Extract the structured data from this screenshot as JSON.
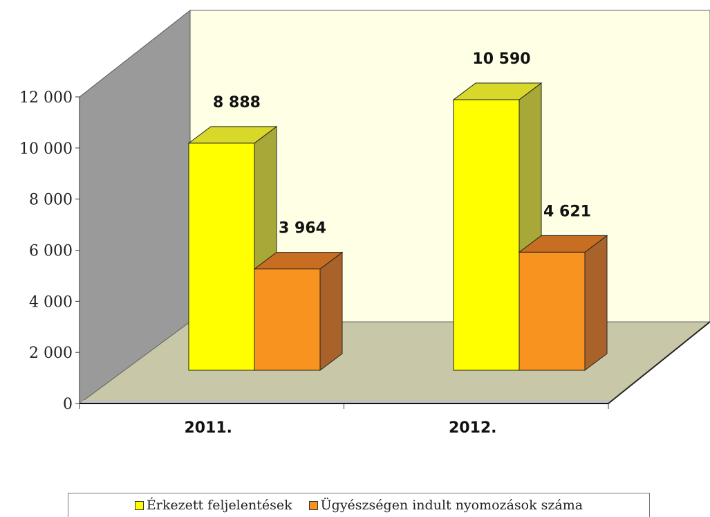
{
  "chart_data": {
    "type": "bar",
    "style": "3d-clustered-column",
    "categories": [
      "2011.",
      "2012."
    ],
    "series": [
      {
        "name": "Érkezett feljelentések",
        "values": [
          8888,
          10590
        ],
        "labels": [
          "8 888",
          "10 590"
        ],
        "color": "#ffff00",
        "side_color": "#a8a838",
        "top_color": "#d8d82a"
      },
      {
        "name": "Ügyészségen indult nyomozások száma",
        "values": [
          3964,
          4621
        ],
        "labels": [
          "3 964",
          "4 621"
        ],
        "color": "#f7931e",
        "side_color": "#a9622a",
        "top_color": "#c86e22"
      }
    ],
    "y_ticks": [
      0,
      2000,
      4000,
      6000,
      8000,
      10000,
      12000
    ],
    "y_tick_labels": [
      "0",
      "2 000",
      "4 000",
      "6 000",
      "8 000",
      "10 000",
      "12 000"
    ],
    "ylim": [
      0,
      12000
    ],
    "grid": false,
    "legend_position": "bottom",
    "colors": {
      "back_wall": "#ffffe6",
      "side_wall": "#9a9a9a",
      "floor_back": "#c8c8a8",
      "floor_front": "#c0c0c0"
    }
  }
}
